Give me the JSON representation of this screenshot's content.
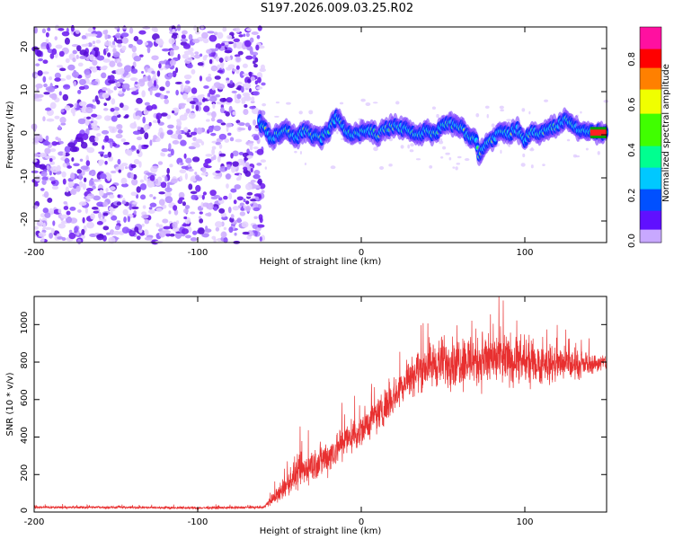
{
  "title": "S197.2026.009.03.25.R02",
  "colors": {
    "snr_line": "#e83030",
    "frame": "#000000",
    "track": "#1040ff",
    "noise": "#8a2be2"
  },
  "chart_data": [
    {
      "type": "heatmap",
      "name": "spectrogram",
      "xlabel": "Height of straight line (km)",
      "ylabel": "Frequency (Hz)",
      "xlim": [
        -200,
        150
      ],
      "ylim": [
        -25,
        25
      ],
      "xticks": [
        -200,
        -100,
        0,
        100
      ],
      "yticks": [
        -20,
        -10,
        0,
        10,
        20
      ],
      "noise_region_x": [
        -200,
        -62
      ],
      "signal_start_x": -62,
      "track": {
        "x": [
          -62,
          -55,
          -50,
          -45,
          -40,
          -35,
          -30,
          -25,
          -20,
          -15,
          -10,
          -5,
          0,
          5,
          10,
          15,
          20,
          25,
          30,
          35,
          40,
          45,
          50,
          55,
          60,
          65,
          70,
          72,
          75,
          80,
          85,
          90,
          95,
          100,
          105,
          110,
          115,
          120,
          125,
          130,
          135,
          140,
          150
        ],
        "y": [
          3,
          -1,
          0.5,
          1,
          -1,
          1,
          0,
          -1,
          1,
          4,
          1,
          0,
          0.5,
          1,
          0,
          1.5,
          2,
          1.5,
          1,
          0,
          1,
          0,
          2,
          2.5,
          2,
          0,
          -1,
          -5,
          -3,
          -1,
          0.5,
          0,
          1.5,
          -1,
          1,
          0,
          1.5,
          2,
          4,
          2,
          1,
          0.5,
          0.5
        ]
      },
      "colorbar": {
        "label": "Normalized spectral amplitude",
        "ticks": [
          0.0,
          0.2,
          0.4,
          0.6,
          0.8
        ],
        "range": [
          0,
          0.95
        ]
      }
    },
    {
      "type": "line",
      "name": "snr",
      "xlabel": "Height of straight line (km)",
      "ylabel": "SNR (10 * v/v)",
      "xlim": [
        -200,
        150
      ],
      "ylim": [
        0,
        1150
      ],
      "xticks": [
        -200,
        -100,
        0,
        100
      ],
      "yticks": [
        0,
        200,
        400,
        600,
        800,
        1000
      ],
      "envelope": {
        "x": [
          -200,
          -150,
          -100,
          -60,
          -50,
          -40,
          -30,
          -20,
          -10,
          0,
          10,
          20,
          30,
          40,
          50,
          60,
          70,
          80,
          90,
          100,
          110,
          120,
          130,
          140,
          150
        ],
        "mean": [
          25,
          25,
          22,
          25,
          100,
          200,
          250,
          300,
          380,
          440,
          520,
          620,
          730,
          780,
          800,
          810,
          810,
          810,
          810,
          800,
          790,
          790,
          780,
          790,
          800
        ],
        "noise": [
          10,
          10,
          10,
          10,
          70,
          130,
          140,
          140,
          140,
          140,
          140,
          140,
          160,
          180,
          200,
          210,
          220,
          220,
          200,
          190,
          160,
          140,
          110,
          80,
          60
        ]
      }
    }
  ]
}
